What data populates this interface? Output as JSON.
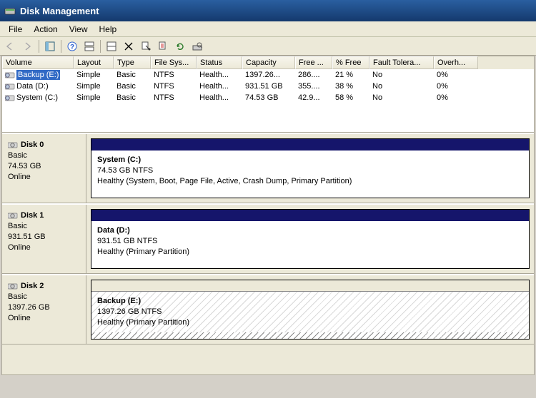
{
  "window": {
    "title": "Disk Management"
  },
  "menu": {
    "file": "File",
    "action": "Action",
    "view": "View",
    "help": "Help"
  },
  "columns": [
    "Volume",
    "Layout",
    "Type",
    "File Sys...",
    "Status",
    "Capacity",
    "Free ...",
    "% Free",
    "Fault Tolera...",
    "Overh..."
  ],
  "volumes": [
    {
      "name": "Backup (E:)",
      "layout": "Simple",
      "type": "Basic",
      "fs": "NTFS",
      "status": "Health...",
      "capacity": "1397.26...",
      "free": "286....",
      "pctfree": "21 %",
      "fault": "No",
      "overh": "0%",
      "selected": true
    },
    {
      "name": "Data (D:)",
      "layout": "Simple",
      "type": "Basic",
      "fs": "NTFS",
      "status": "Health...",
      "capacity": "931.51 GB",
      "free": "355....",
      "pctfree": "38 %",
      "fault": "No",
      "overh": "0%",
      "selected": false
    },
    {
      "name": "System (C:)",
      "layout": "Simple",
      "type": "Basic",
      "fs": "NTFS",
      "status": "Health...",
      "capacity": "74.53 GB",
      "free": "42.9...",
      "pctfree": "58 %",
      "fault": "No",
      "overh": "0%",
      "selected": false
    }
  ],
  "disks": [
    {
      "name": "Disk 0",
      "type": "Basic",
      "size": "74.53 GB",
      "status": "Online",
      "part": {
        "name": "System  (C:)",
        "info": "74.53 GB NTFS",
        "status": "Healthy (System, Boot, Page File, Active, Crash Dump, Primary Partition)",
        "hatched": false
      }
    },
    {
      "name": "Disk 1",
      "type": "Basic",
      "size": "931.51 GB",
      "status": "Online",
      "part": {
        "name": "Data  (D:)",
        "info": "931.51 GB NTFS",
        "status": "Healthy (Primary Partition)",
        "hatched": false
      }
    },
    {
      "name": "Disk 2",
      "type": "Basic",
      "size": "1397.26 GB",
      "status": "Online",
      "part": {
        "name": "Backup  (E:)",
        "info": "1397.26 GB NTFS",
        "status": "Healthy (Primary Partition)",
        "hatched": true
      }
    }
  ],
  "colors": {
    "titlebar_top": "#2a5fa0",
    "titlebar_bot": "#14396d",
    "part_header": "#15156b",
    "selection": "#316ac5",
    "panel": "#ece9d8"
  }
}
